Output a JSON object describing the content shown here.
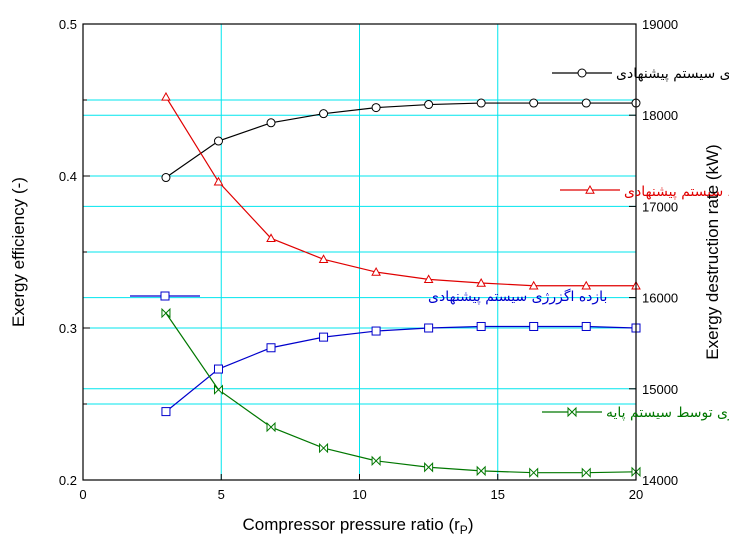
{
  "chart_data": {
    "type": "line",
    "title": "",
    "xlabel": "Compressor pressure ratio (r",
    "xlabel_sub": "P",
    "ylabel_left": "Exergy efficiency (-)",
    "ylabel_right": "Exergy destruction rate (kW)",
    "xlim": [
      0,
      20
    ],
    "ylim_left": [
      0.2,
      0.5
    ],
    "ylim_right": [
      14000,
      19000
    ],
    "x_ticks": [
      "0",
      "5",
      "10",
      "15",
      "20"
    ],
    "y_left_ticks": [
      "0.2",
      "0.3",
      "0.4",
      "0.5"
    ],
    "y_right_ticks": [
      "14000",
      "15000",
      "16000",
      "17000",
      "18000",
      "19000"
    ],
    "grid": true,
    "grid_color": "#00e5ee",
    "series": [
      {
        "name": "بازده اگزرژی سیستم پیشنهادی",
        "axis": "left",
        "color": "#000000",
        "marker": "circle",
        "x": [
          3,
          4.9,
          6.8,
          8.7,
          10.6,
          12.5,
          14.4,
          16.3,
          18.2,
          20
        ],
        "y": [
          0.399,
          0.423,
          0.435,
          0.441,
          0.445,
          0.447,
          0.448,
          0.448,
          0.448,
          0.448
        ]
      },
      {
        "name": "تخریب اگزرژی توسط سیستم پیشنهادی",
        "axis": "right",
        "color": "#e00000",
        "marker": "triangle",
        "x": [
          3,
          4.9,
          6.8,
          8.7,
          10.6,
          12.5,
          14.4,
          16.3,
          18.2,
          20
        ],
        "y": [
          18200,
          17270,
          16650,
          16420,
          16280,
          16200,
          16160,
          16130,
          16130,
          16130
        ]
      },
      {
        "name": "بازده اگزرژی سیستم پیشنهادی",
        "axis": "left",
        "color": "#0000cc",
        "marker": "square",
        "x": [
          3,
          4.9,
          6.8,
          8.7,
          10.6,
          12.5,
          14.4,
          16.3,
          18.2,
          20
        ],
        "y": [
          0.245,
          0.273,
          0.287,
          0.294,
          0.298,
          0.3,
          0.301,
          0.301,
          0.301,
          0.3
        ]
      },
      {
        "name": "تخریب اگزرژی توسط سیستم پایه",
        "axis": "right",
        "color": "#007700",
        "marker": "bowtie",
        "x": [
          3,
          4.9,
          6.8,
          8.7,
          10.6,
          12.5,
          14.4,
          16.3,
          18.2,
          20
        ],
        "y": [
          15830,
          14990,
          14580,
          14350,
          14210,
          14140,
          14100,
          14080,
          14080,
          14090
        ]
      }
    ],
    "legend_entries": [
      {
        "label": "بازده اگزرژی سیستم پیشنهادی",
        "color": "#000000",
        "marker": "circle"
      },
      {
        "label": "تخریب اگزرژی توسط سیستم پیشنهادی",
        "color": "#e00000",
        "marker": "triangle"
      },
      {
        "label": "بازده اگزرژی سیستم پیشنهادی",
        "color": "#0000cc",
        "marker": "square"
      },
      {
        "label": "تخریب اگزرژی توسط سیستم پایه",
        "color": "#007700",
        "marker": "bowtie"
      }
    ]
  }
}
